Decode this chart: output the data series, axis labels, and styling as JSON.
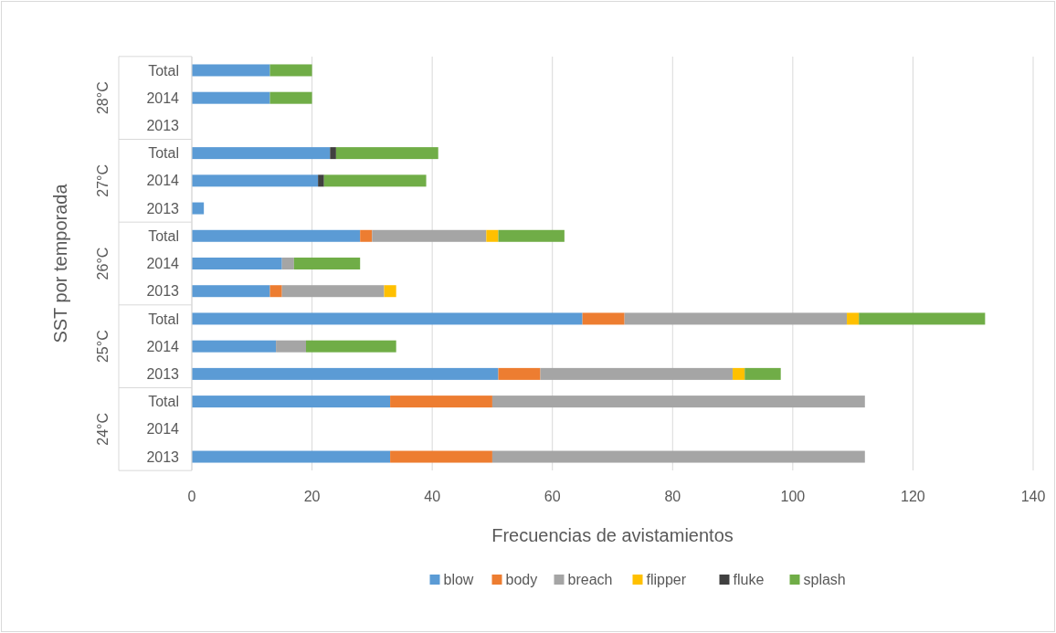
{
  "chart_data": {
    "type": "bar",
    "orientation": "horizontal",
    "stacked": true,
    "categories": [
      "Total",
      "2014",
      "2013",
      "Total",
      "2014",
      "2013",
      "Total",
      "2014",
      "2013",
      "Total",
      "2014",
      "2013",
      "Total",
      "2014",
      "2013"
    ],
    "annotations": [
      "28°C",
      "27°C",
      "26°C",
      "25°C",
      "24°C"
    ],
    "xlabel": "Frecuencias de avistamientos",
    "ylabel": "SST por temporada",
    "xlim": [
      0,
      140
    ],
    "xticks": [
      0,
      20,
      40,
      60,
      80,
      100,
      120,
      140
    ],
    "grid": "x",
    "legend": "bottom",
    "series": [
      {
        "name": "blow",
        "color": "#5b9bd5",
        "values": [
          13,
          13,
          null,
          23,
          21,
          2,
          28,
          15,
          13,
          65,
          14,
          51,
          33,
          null,
          33
        ]
      },
      {
        "name": "body",
        "color": "#ed7d31",
        "values": [
          null,
          null,
          null,
          null,
          null,
          null,
          2,
          null,
          2,
          7,
          null,
          7,
          17,
          null,
          17
        ]
      },
      {
        "name": "breach",
        "color": "#a5a5a5",
        "values": [
          null,
          null,
          null,
          null,
          null,
          null,
          19,
          2,
          17,
          37,
          5,
          32,
          62,
          null,
          62
        ]
      },
      {
        "name": "flipper",
        "color": "#ffc000",
        "values": [
          null,
          null,
          null,
          null,
          null,
          null,
          2,
          null,
          2,
          2,
          null,
          2,
          null,
          null,
          null
        ]
      },
      {
        "name": "fluke",
        "color": "#404040",
        "values": [
          null,
          null,
          null,
          1,
          1,
          null,
          null,
          null,
          null,
          null,
          null,
          null,
          null,
          null,
          null
        ]
      },
      {
        "name": "splash",
        "color": "#70ad47",
        "values": [
          7,
          7,
          null,
          17,
          17,
          null,
          11,
          11,
          null,
          21,
          15,
          6,
          null,
          null,
          null
        ]
      }
    ]
  }
}
